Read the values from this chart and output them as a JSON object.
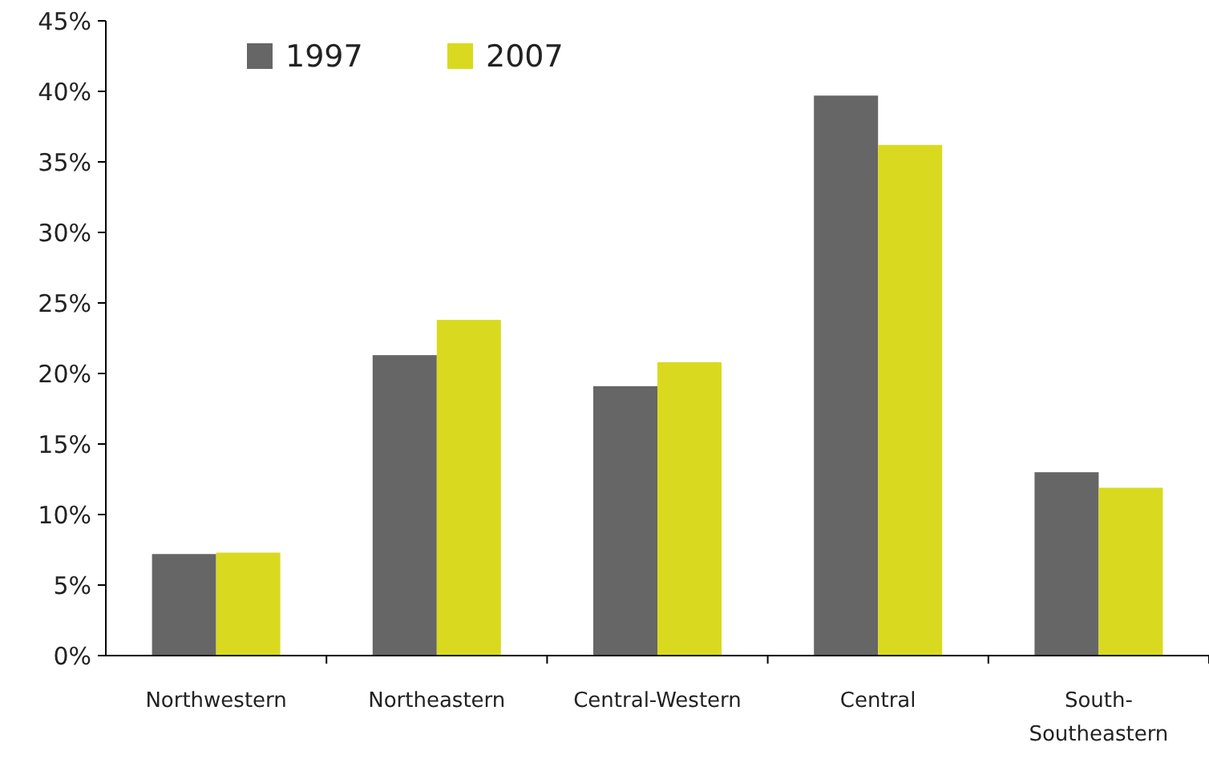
{
  "chart_data": {
    "type": "bar",
    "categories": [
      "Northwestern",
      "Northeastern",
      "Central-Western",
      "Central",
      "South-Southeastern"
    ],
    "series": [
      {
        "name": "1997",
        "color": "#666666",
        "values": [
          7.2,
          21.3,
          19.1,
          39.7,
          13
        ]
      },
      {
        "name": "2007",
        "color": "#d9da1f",
        "values": [
          7.3,
          23.8,
          20.8,
          36.2,
          11.9
        ]
      }
    ],
    "ylim": [
      0,
      45
    ],
    "yticks": [
      {
        "value": 0,
        "label": "0%"
      },
      {
        "value": 5,
        "label": "5%"
      },
      {
        "value": 10,
        "label": "10%"
      },
      {
        "value": 15,
        "label": "15%"
      },
      {
        "value": 20,
        "label": "20%"
      },
      {
        "value": 25,
        "label": "25%"
      },
      {
        "value": 30,
        "label": "30%"
      },
      {
        "value": 35,
        "label": "35%"
      },
      {
        "value": 40,
        "label": "40%"
      },
      {
        "value": 45,
        "label": "45%"
      }
    ],
    "grid": false,
    "legend": "top left"
  }
}
